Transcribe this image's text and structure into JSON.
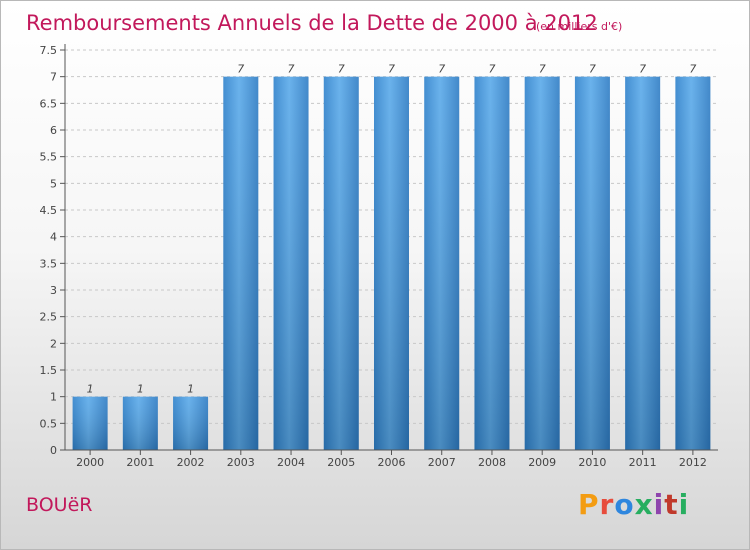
{
  "title": "Remboursements Annuels de la Dette de 2000 à 2012",
  "unit": "(en milliers d'€)",
  "commune": "BOUëR",
  "brand": {
    "letters": [
      "P",
      "r",
      "o",
      "x",
      "i",
      "t",
      "i"
    ],
    "colors": [
      "#f39c12",
      "#e74c3c",
      "#2e86de",
      "#27ae60",
      "#8e44ad",
      "#c0392b",
      "#27ae60"
    ]
  },
  "colors": {
    "bar": "#3d8fd6",
    "bar_light": "#5fb0ec",
    "bar_dark": "#2874b8",
    "title": "#c2185b"
  },
  "chart_data": {
    "type": "bar",
    "categories": [
      "2000",
      "2001",
      "2002",
      "2003",
      "2004",
      "2005",
      "2006",
      "2007",
      "2008",
      "2009",
      "2010",
      "2011",
      "2012"
    ],
    "values": [
      1,
      1,
      1,
      7,
      7,
      7,
      7,
      7,
      7,
      7,
      7,
      7,
      7
    ],
    "data_labels": [
      "1",
      "1",
      "1",
      "7",
      "7",
      "7",
      "7",
      "7",
      "7",
      "7",
      "7",
      "7",
      "7"
    ],
    "yticks": [
      "0",
      "0.5",
      "1",
      "1.5",
      "2",
      "2.5",
      "3",
      "3.5",
      "4",
      "4.5",
      "5",
      "5.5",
      "6",
      "6.5",
      "7",
      "7.5"
    ],
    "ylim": [
      0,
      7.5
    ],
    "grid": "horizontal dashed"
  }
}
